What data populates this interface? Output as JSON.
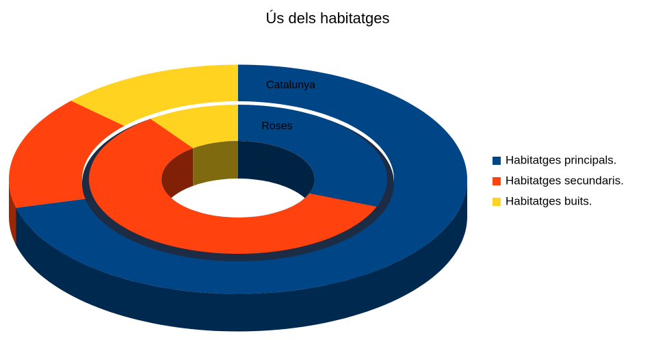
{
  "chart_data": {
    "type": "donut",
    "title": "Ús dels habitatges",
    "categories": [
      "Habitatges principals.",
      "Habitatges secundaris.",
      "Habitatges buits."
    ],
    "colors": [
      "#004586",
      "#ff420e",
      "#ffd320"
    ],
    "series": [
      {
        "name": "Catalunya",
        "values": [
          71,
          16,
          13
        ]
      },
      {
        "name": "Roses",
        "values": [
          31,
          59,
          10
        ]
      }
    ],
    "legend": "right"
  }
}
